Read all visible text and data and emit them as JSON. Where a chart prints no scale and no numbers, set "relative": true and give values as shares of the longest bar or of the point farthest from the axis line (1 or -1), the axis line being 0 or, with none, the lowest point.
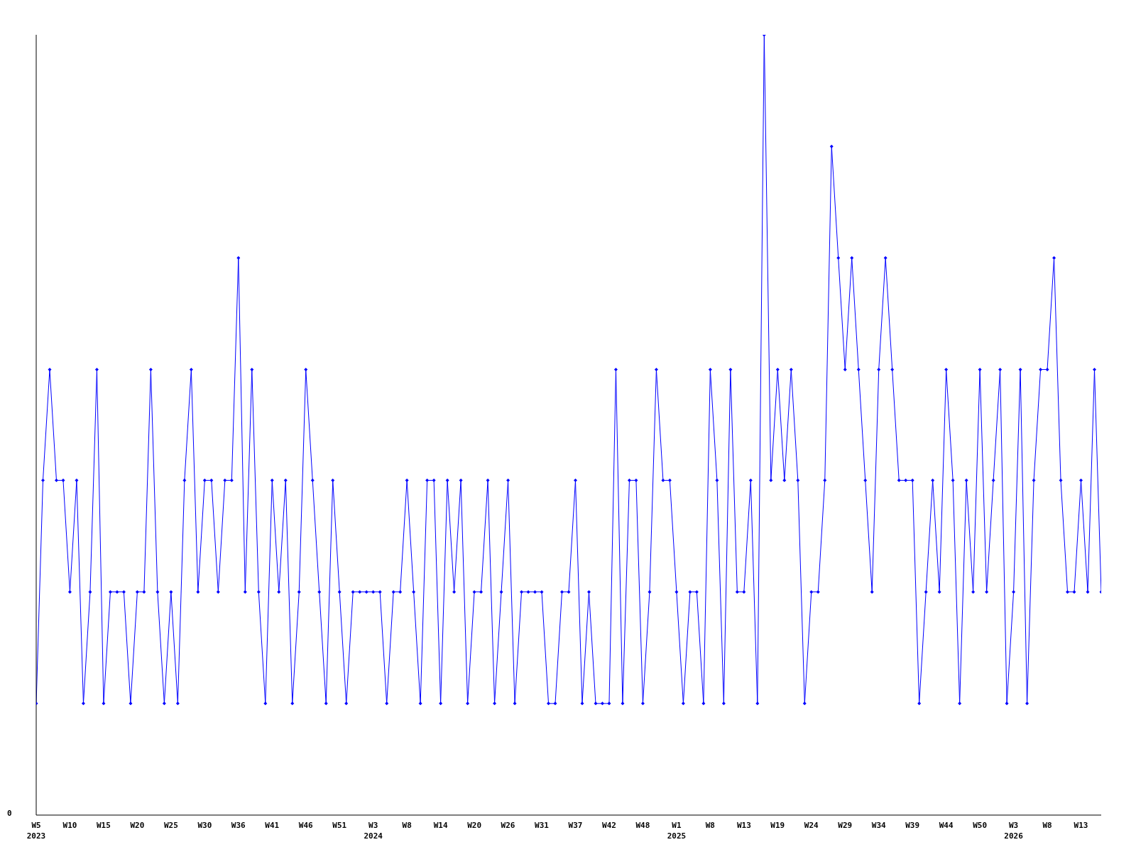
{
  "chart_data": {
    "type": "line",
    "relative": true,
    "grid": false,
    "legend": false,
    "marker": "diamond",
    "line_style": "solid",
    "annotations": [
      "0"
    ],
    "categories": [
      "W5\n2023",
      null,
      null,
      null,
      null,
      "W10",
      null,
      null,
      null,
      null,
      "W15",
      null,
      null,
      null,
      null,
      "W20",
      null,
      null,
      null,
      null,
      "W25",
      null,
      null,
      null,
      null,
      "W30",
      null,
      null,
      null,
      null,
      "W36",
      null,
      null,
      null,
      null,
      "W41",
      null,
      null,
      null,
      null,
      "W46",
      null,
      null,
      null,
      null,
      "W51",
      null,
      null,
      null,
      null,
      "W3\n2024",
      null,
      null,
      null,
      null,
      "W8",
      null,
      null,
      null,
      null,
      "W14",
      null,
      null,
      null,
      null,
      "W20",
      null,
      null,
      null,
      null,
      "W26",
      null,
      null,
      null,
      null,
      "W31",
      null,
      null,
      null,
      null,
      "W37",
      null,
      null,
      null,
      null,
      "W42",
      null,
      null,
      null,
      null,
      "W48",
      null,
      null,
      null,
      null,
      "W1\n2025",
      null,
      null,
      null,
      null,
      "W8",
      null,
      null,
      null,
      null,
      "W13",
      null,
      null,
      null,
      null,
      "W19",
      null,
      null,
      null,
      null,
      "W24",
      null,
      null,
      null,
      null,
      "W29",
      null,
      null,
      null,
      null,
      "W34",
      null,
      null,
      null,
      null,
      "W39",
      null,
      null,
      null,
      null,
      "W44",
      null,
      null,
      null,
      null,
      "W50",
      null,
      null,
      null,
      null,
      "W3\n2026",
      null,
      null,
      null,
      null,
      "W8",
      null,
      null,
      null,
      null,
      "W13",
      null,
      null,
      null
    ],
    "series": [
      {
        "color": "#0000ff",
        "values": [
          0.143,
          0.429,
          0.571,
          0.429,
          0.429,
          0.286,
          0.429,
          0.143,
          0.286,
          0.571,
          0.143,
          0.286,
          0.286,
          0.286,
          0.143,
          0.286,
          0.286,
          0.571,
          0.286,
          0.143,
          0.286,
          0.143,
          0.429,
          0.571,
          0.286,
          0.429,
          0.429,
          0.286,
          0.429,
          0.429,
          0.714,
          0.286,
          0.571,
          0.286,
          0.143,
          0.429,
          0.286,
          0.429,
          0.143,
          0.286,
          0.571,
          0.429,
          0.286,
          0.143,
          0.429,
          0.286,
          0.143,
          0.286,
          0.286,
          0.286,
          0.286,
          0.286,
          0.143,
          0.286,
          0.286,
          0.429,
          0.286,
          0.143,
          0.429,
          0.429,
          0.143,
          0.429,
          0.286,
          0.429,
          0.143,
          0.286,
          0.286,
          0.429,
          0.143,
          0.286,
          0.429,
          0.143,
          0.286,
          0.286,
          0.286,
          0.286,
          0.143,
          0.143,
          0.286,
          0.286,
          0.429,
          0.143,
          0.286,
          0.143,
          0.143,
          0.143,
          0.571,
          0.143,
          0.429,
          0.429,
          0.143,
          0.286,
          0.571,
          0.429,
          0.429,
          0.286,
          0.143,
          0.286,
          0.286,
          0.143,
          0.571,
          0.429,
          0.143,
          0.571,
          0.286,
          0.286,
          0.429,
          0.143,
          1,
          0.429,
          0.571,
          0.429,
          0.571,
          0.429,
          0.143,
          0.286,
          0.286,
          0.429,
          0.857,
          0.714,
          0.571,
          0.714,
          0.571,
          0.429,
          0.286,
          0.571,
          0.714,
          0.571,
          0.429,
          0.429,
          0.429,
          0.143,
          0.286,
          0.429,
          0.286,
          0.571,
          0.429,
          0.143,
          0.429,
          0.286,
          0.571,
          0.286,
          0.429,
          0.571,
          0.143,
          0.286,
          0.571,
          0.143,
          0.429,
          0.571,
          0.571,
          0.714,
          0.429,
          0.286,
          0.286,
          0.429,
          0.286,
          0.571,
          0.286
        ]
      }
    ]
  }
}
